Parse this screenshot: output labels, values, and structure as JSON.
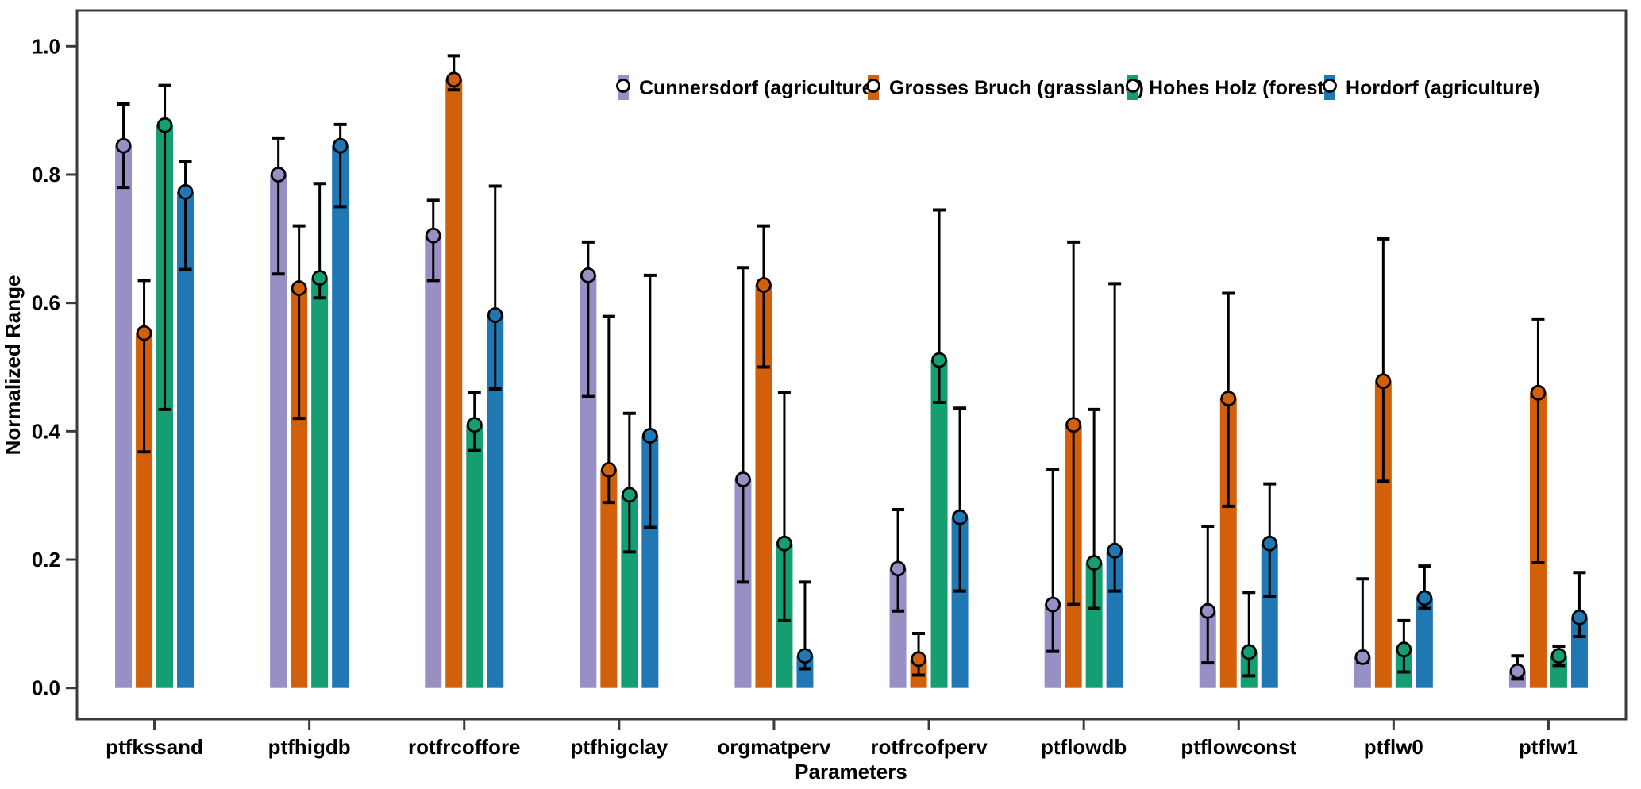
{
  "chart_data": {
    "type": "bar",
    "title": "",
    "xlabel": "Parameters",
    "ylabel": "Normalized Range",
    "ylim": [
      0.0,
      1.0
    ],
    "yticks": [
      0.0,
      0.2,
      0.4,
      0.6,
      0.8,
      1.0
    ],
    "ytick_labels": [
      "0.0",
      "0.2",
      "0.4",
      "0.6",
      "0.8",
      "1.0"
    ],
    "grid": false,
    "error_bars": true,
    "marker": "circle",
    "legend_position": "top-inside-horizontal",
    "axis_color": "#3a3a3a",
    "error_bar_color": "#000000",
    "categories": [
      "ptfkssand",
      "ptfhigdb",
      "rotfrcoffore",
      "ptfhigclay",
      "orgmatperv",
      "rotfrcofperv",
      "ptflowdb",
      "ptflowconst",
      "ptflw0",
      "ptflw1"
    ],
    "series": [
      {
        "name": "Cunnersdorf (agriculture)",
        "color": "#988fc4",
        "values": [
          0.845,
          0.8,
          0.705,
          0.643,
          0.325,
          0.186,
          0.13,
          0.12,
          0.048,
          0.026
        ],
        "err_low": [
          0.78,
          0.645,
          0.635,
          0.454,
          0.165,
          0.12,
          0.057,
          0.039,
          0.04,
          0.014
        ],
        "err_high": [
          0.91,
          0.857,
          0.76,
          0.695,
          0.655,
          0.278,
          0.34,
          0.252,
          0.17,
          0.05
        ]
      },
      {
        "name": "Grosses Bruch (grassland)",
        "color": "#d2600a",
        "values": [
          0.553,
          0.623,
          0.948,
          0.34,
          0.628,
          0.045,
          0.41,
          0.451,
          0.478,
          0.46
        ],
        "err_low": [
          0.368,
          0.42,
          0.932,
          0.289,
          0.5,
          0.02,
          0.13,
          0.283,
          0.322,
          0.195
        ],
        "err_high": [
          0.635,
          0.72,
          0.985,
          0.579,
          0.72,
          0.085,
          0.695,
          0.615,
          0.7,
          0.575
        ]
      },
      {
        "name": "Hohes Holz (forest)",
        "color": "#149e72",
        "values": [
          0.877,
          0.639,
          0.41,
          0.301,
          0.225,
          0.511,
          0.195,
          0.056,
          0.06,
          0.05
        ],
        "err_low": [
          0.434,
          0.608,
          0.37,
          0.212,
          0.105,
          0.445,
          0.124,
          0.019,
          0.025,
          0.035
        ],
        "err_high": [
          0.939,
          0.786,
          0.46,
          0.428,
          0.461,
          0.745,
          0.434,
          0.149,
          0.105,
          0.065
        ]
      },
      {
        "name": "Hordorf (agriculture)",
        "color": "#1f78b4",
        "values": [
          0.773,
          0.845,
          0.581,
          0.393,
          0.05,
          0.266,
          0.214,
          0.225,
          0.14,
          0.11
        ],
        "err_low": [
          0.652,
          0.75,
          0.466,
          0.25,
          0.03,
          0.151,
          0.151,
          0.142,
          0.124,
          0.08
        ],
        "err_high": [
          0.821,
          0.878,
          0.782,
          0.643,
          0.165,
          0.436,
          0.63,
          0.318,
          0.19,
          0.18
        ]
      }
    ]
  }
}
